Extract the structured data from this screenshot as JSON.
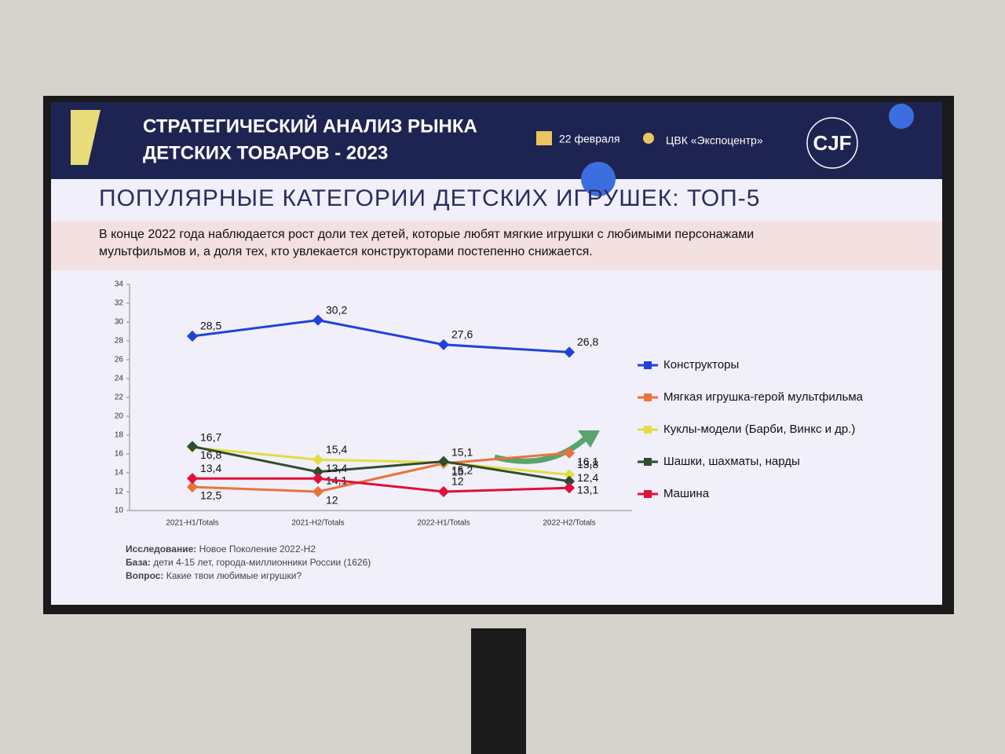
{
  "header": {
    "title_lines": [
      "СТРАТЕГИЧЕСКИЙ АНАЛИЗ РЫНКА",
      "ДЕТСКИХ ТОВАРОВ - 2023"
    ],
    "date": "22 февраля",
    "venue": "ЦВК «Экспоцентр»",
    "logo": "CJF"
  },
  "slide_title": "ПОПУЛЯРНЫЕ КАТЕГОРИИ ДЕТСКИХ ИГРУШЕК: ТОП-5",
  "subtitle_lines": [
    "В конце 2022 года наблюдается рост доли тех детей, которые любят мягкие игрушки с любимыми персонажами",
    "мультфильмов и, а доля тех, кто увлекается конструкторами постепенно снижается."
  ],
  "footnotes": [
    {
      "label": "Исследование:",
      "text": "Новое Поколение 2022-H2"
    },
    {
      "label": "База:",
      "text": "дети 4-15 лет, города-миллионники России (1626)"
    },
    {
      "label": "Вопрос:",
      "text": "Какие твои любимые игрушки?"
    }
  ],
  "chart_data": {
    "type": "line",
    "categories": [
      "2021-H1/Totals",
      "2021-H2/Totals",
      "2022-H1/Totals",
      "2022-H2/Totals"
    ],
    "ylim": [
      10,
      34
    ],
    "yticks": [
      10,
      12,
      14,
      16,
      18,
      20,
      22,
      24,
      26,
      28,
      30,
      32,
      34
    ],
    "series": [
      {
        "name": "Конструкторы",
        "color": "#1f43d8",
        "values": [
          28.5,
          30.2,
          27.6,
          26.8
        ],
        "value_labels": [
          "28,5",
          "30,2",
          "27,6",
          "26,8"
        ]
      },
      {
        "name": "Мягкая игрушка-герой мультфильма",
        "color": "#e8743b",
        "values": [
          12.5,
          12,
          15,
          16.1
        ],
        "value_labels": [
          "12,5",
          "12",
          "15",
          "16,1"
        ]
      },
      {
        "name": "Куклы-модели (Барби, Винкс и др.)",
        "color": "#e4dc45",
        "values": [
          16.7,
          15.4,
          15.1,
          13.8
        ],
        "value_labels": [
          "16,7",
          "15,4",
          "15,1",
          "13,8"
        ]
      },
      {
        "name": "Шашки, шахматы, нарды",
        "color": "#2f4d2f",
        "values": [
          16.8,
          14.1,
          15.2,
          13.1
        ],
        "value_labels": [
          "16,8",
          "14,1",
          "15,2",
          "13,1"
        ]
      },
      {
        "name": "Машина",
        "color": "#e0103a",
        "values": [
          13.4,
          13.4,
          12,
          12.4
        ],
        "value_labels": [
          "13,4",
          "13,4",
          "12",
          "12,4"
        ]
      }
    ]
  }
}
